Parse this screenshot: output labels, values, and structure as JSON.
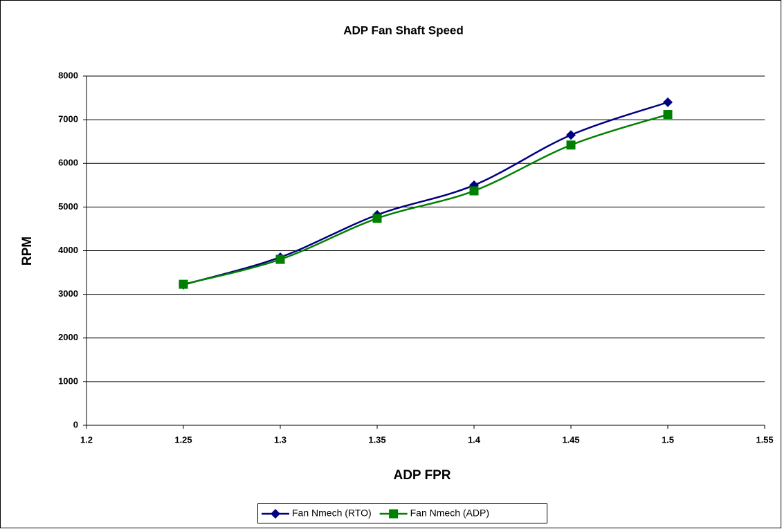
{
  "chart_data": {
    "type": "line",
    "title": "ADP Fan Shaft Speed",
    "x_label": "ADP FPR",
    "y_label": "RPM",
    "x": [
      1.25,
      1.3,
      1.35,
      1.4,
      1.45,
      1.5
    ],
    "series": [
      {
        "name": "Fan Nmech (RTO)",
        "color": "#000080",
        "marker": "diamond",
        "values": [
          3220,
          3850,
          4820,
          5500,
          6650,
          7400
        ]
      },
      {
        "name": "Fan Nmech (ADP)",
        "color": "#008000",
        "marker": "square",
        "values": [
          3230,
          3800,
          4740,
          5370,
          6420,
          7120
        ]
      }
    ],
    "xlim": [
      1.2,
      1.55
    ],
    "xticks": [
      1.2,
      1.25,
      1.3,
      1.35,
      1.4,
      1.45,
      1.5,
      1.55
    ],
    "ylim": [
      0,
      8000
    ],
    "yticks": [
      0,
      1000,
      2000,
      3000,
      4000,
      5000,
      6000,
      7000,
      8000
    ],
    "grid": true,
    "smooth": true,
    "legend": "bottom"
  }
}
